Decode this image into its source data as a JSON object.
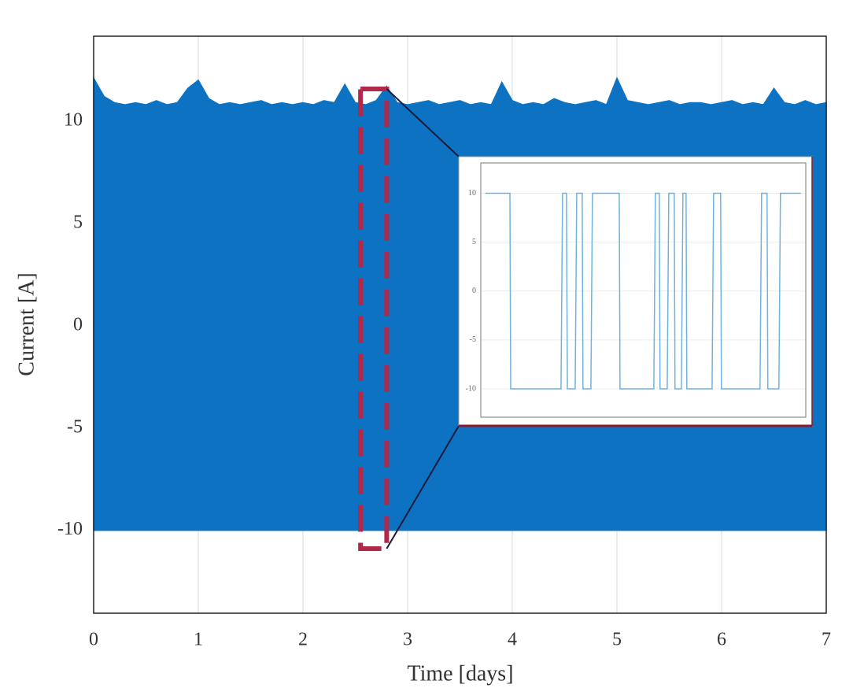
{
  "chart_data": [
    {
      "type": "area",
      "xlabel": "Time [days]",
      "ylabel": "Current [A]",
      "x": [
        0,
        0.1,
        0.2,
        0.3,
        0.4,
        0.5,
        0.6,
        0.7,
        0.8,
        0.9,
        1,
        1.1,
        1.2,
        1.3,
        1.4,
        1.5,
        1.6,
        1.7,
        1.8,
        1.9,
        2,
        2.1,
        2.2,
        2.3,
        2.4,
        2.5,
        2.6,
        2.7,
        2.8,
        2.9,
        3,
        3.1,
        3.2,
        3.3,
        3.4,
        3.5,
        3.6,
        3.7,
        3.8,
        3.9,
        4,
        4.1,
        4.2,
        4.3,
        4.4,
        4.5,
        4.6,
        4.7,
        4.8,
        4.9,
        5,
        5.1,
        5.2,
        5.3,
        5.4,
        5.5,
        5.6,
        5.7,
        5.8,
        5.9,
        6,
        6.1,
        6.2,
        6.3,
        6.4,
        6.5,
        6.6,
        6.7,
        6.8,
        6.9,
        7
      ],
      "series": [
        {
          "color": "#0d72c2",
          "values": [
            12.1,
            11.2,
            10.9,
            10.8,
            10.9,
            10.8,
            11.0,
            10.8,
            10.9,
            11.6,
            12.0,
            11.1,
            10.8,
            10.9,
            10.8,
            10.9,
            11.0,
            10.8,
            10.9,
            10.8,
            10.9,
            10.8,
            11.0,
            10.9,
            11.8,
            10.9,
            10.8,
            11.0,
            11.7,
            10.9,
            10.8,
            10.9,
            11.0,
            10.8,
            10.9,
            11.0,
            10.8,
            10.9,
            10.8,
            11.9,
            11.0,
            10.8,
            10.9,
            10.8,
            11.1,
            10.9,
            10.8,
            10.9,
            11.0,
            10.8,
            12.1,
            11.0,
            10.9,
            10.8,
            10.9,
            11.0,
            10.8,
            10.9,
            10.9,
            10.8,
            10.9,
            11.0,
            10.8,
            10.9,
            10.8,
            11.6,
            10.9,
            10.8,
            11.0,
            10.8,
            10.9
          ]
        },
        {
          "color": "#0d72c2",
          "values": [
            -10,
            -10,
            -10,
            -10,
            -10,
            -10,
            -10,
            -10,
            -10,
            -10,
            -10,
            -10,
            -10,
            -10,
            -10,
            -10,
            -10,
            -10,
            -10,
            -10,
            -10,
            -10,
            -10,
            -10,
            -10,
            -10,
            -10,
            -10,
            -10,
            -10,
            -10,
            -10,
            -10,
            -10,
            -10,
            -10,
            -10,
            -10,
            -10,
            -10,
            -10,
            -10,
            -10,
            -10,
            -10,
            -10,
            -10,
            -10,
            -10,
            -10,
            -10,
            -10,
            -10,
            -10,
            -10,
            -10,
            -10,
            -10,
            -10,
            -10,
            -10,
            -10,
            -10,
            -10,
            -10,
            -10,
            -10,
            -10,
            -10,
            -10,
            -10
          ]
        }
      ],
      "xlim": [
        0,
        7
      ],
      "xticks": [
        0,
        1,
        2,
        3,
        4,
        5,
        6,
        7
      ],
      "ylim": [
        -14.05,
        14.15
      ],
      "yticks": [
        -10,
        -5,
        0,
        5,
        10
      ],
      "grid": true
    },
    {
      "type": "line",
      "x": [
        2.5536,
        2.5724,
        2.573,
        2.6117,
        2.6129,
        2.6159,
        2.6166,
        2.6226,
        2.6238,
        2.628,
        2.6286,
        2.6347,
        2.6359,
        2.6565,
        2.6571,
        2.6831,
        2.6843,
        2.6873,
        2.6879,
        2.6934,
        2.6946,
        2.6988,
        2.6994,
        2.7043,
        2.7055,
        2.7079,
        2.7085,
        2.7279,
        2.7291,
        2.7345,
        2.7351,
        2.7648,
        2.766,
        2.7702,
        2.7708,
        2.7793,
        2.7805,
        2.7962
      ],
      "series": [
        {
          "color": "#6fb3dc",
          "values": [
            10,
            10,
            -10,
            -10,
            10,
            10,
            -10,
            -10,
            10,
            10,
            -10,
            -10,
            10,
            10,
            -10,
            -10,
            10,
            10,
            -10,
            -10,
            10,
            10,
            -10,
            -10,
            10,
            10,
            -10,
            -10,
            10,
            10,
            -10,
            -10,
            10,
            10,
            -10,
            -10,
            10,
            10
          ]
        }
      ],
      "xlim": [
        2.55,
        2.8
      ],
      "ylim": [
        -12.9,
        13.1
      ],
      "yticks": [
        -10,
        -5,
        0,
        5,
        10
      ],
      "grid": true
    }
  ]
}
